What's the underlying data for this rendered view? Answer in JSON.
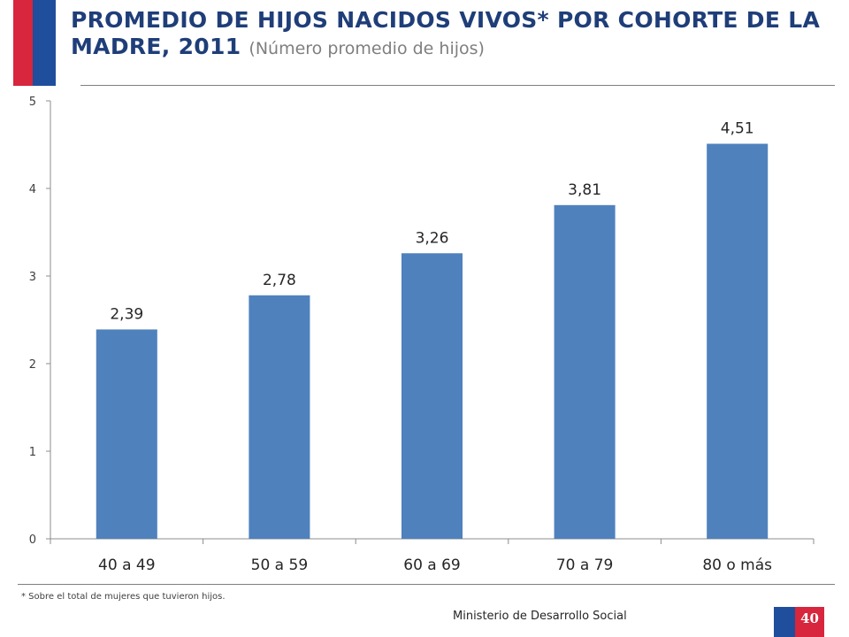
{
  "header": {
    "title": "PROMEDIO DE HIJOS NACIDOS VIVOS* POR COHORTE DE LA MADRE, 2011",
    "subtitle": "(Número promedio de hijos)"
  },
  "chart_data": {
    "type": "bar",
    "categories": [
      "40 a 49",
      "50 a 59",
      "60 a 69",
      "70 a 79",
      "80 o más"
    ],
    "values": [
      2.39,
      2.78,
      3.26,
      3.81,
      4.51
    ],
    "value_labels": [
      "2,39",
      "2,78",
      "3,26",
      "3,81",
      "4,51"
    ],
    "ylim": [
      0,
      5
    ],
    "yticks": [
      0,
      1,
      2,
      3,
      4,
      5
    ],
    "bar_color": "#4f81bd",
    "grid": false,
    "legend": "none"
  },
  "footer": {
    "footnote": "* Sobre el total de mujeres que tuvieron hijos.",
    "ministry": "Ministerio de Desarrollo Social",
    "page_number": "40"
  },
  "colors": {
    "title": "#1f3e79",
    "flag_red": "#d7263d",
    "flag_blue": "#1f4e9c"
  }
}
